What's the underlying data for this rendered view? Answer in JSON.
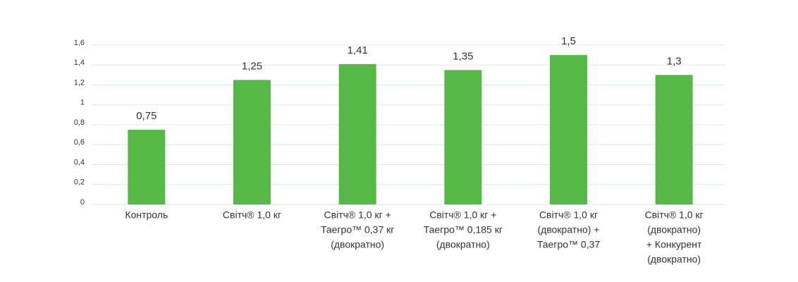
{
  "chart_data": {
    "type": "bar",
    "categories": [
      [
        "Контроль"
      ],
      [
        "Світч® 1,0 кг"
      ],
      [
        "Світч® 1,0 кг +",
        "Таегро™ 0,37 кг",
        "(двократно)"
      ],
      [
        "Світч® 1,0 кг +",
        "Таегро™ 0,185 кг",
        "(двократно)"
      ],
      [
        "Світч® 1,0 кг",
        "(двократно) +",
        "Таегро™ 0,37"
      ],
      [
        "Світч® 1,0 кг",
        "(двократно)",
        "+ Конкурент",
        "(двократно)"
      ]
    ],
    "values": [
      0.75,
      1.25,
      1.41,
      1.35,
      1.5,
      1.3
    ],
    "value_labels": [
      "0,75",
      "1,25",
      "1,41",
      "1,35",
      "1,5",
      "1,3"
    ],
    "color": "#56b947",
    "ylim": [
      0,
      1.6
    ],
    "yticks": [
      0,
      {
        "value": 0.2,
        "label": "0,2"
      },
      {
        "value": 0.4,
        "label": "0,4"
      },
      {
        "value": 0.6,
        "label": "0,6"
      },
      {
        "value": 0.8,
        "label": "0,8"
      },
      1,
      {
        "value": 1.2,
        "label": "1,2"
      },
      {
        "value": 1.4,
        "label": "1,4"
      },
      {
        "value": 1.6,
        "label": "1,6"
      }
    ],
    "grid": true
  }
}
